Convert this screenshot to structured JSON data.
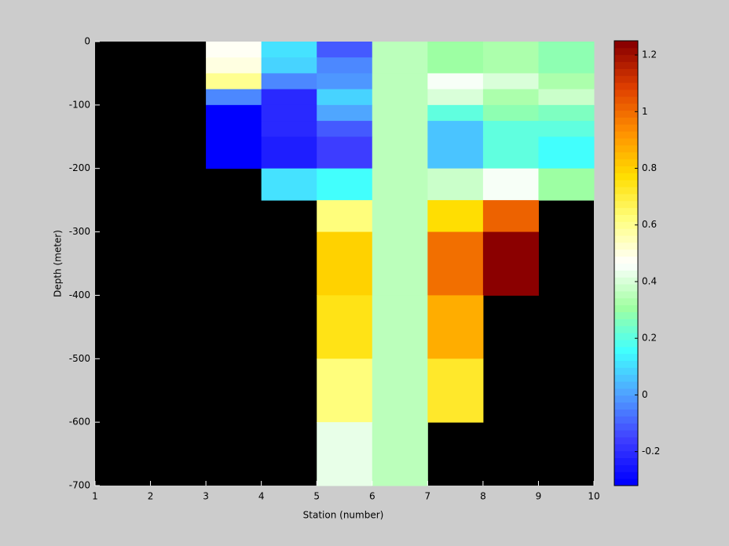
{
  "chart_data": {
    "type": "heatmap",
    "xlabel": "Station (number)",
    "ylabel": "Depth (meter)",
    "x": [
      1,
      2,
      3,
      4,
      5,
      6,
      7,
      8,
      9,
      10
    ],
    "y": [
      0,
      -25,
      -50,
      -75,
      -100,
      -125,
      -150,
      -200,
      -250,
      -300,
      -400,
      -500,
      -600,
      -700
    ],
    "z": [
      [
        null,
        null,
        0.47,
        0.1,
        -0.1,
        0.35,
        0.3,
        0.33,
        0.28
      ],
      [
        null,
        null,
        0.5,
        0.08,
        -0.05,
        0.35,
        0.3,
        0.33,
        0.28
      ],
      [
        null,
        null,
        0.6,
        -0.05,
        -0.02,
        0.35,
        0.45,
        0.4,
        0.33
      ],
      [
        null,
        null,
        -0.05,
        -0.2,
        0.08,
        0.35,
        0.4,
        0.32,
        0.38
      ],
      [
        null,
        null,
        -0.3,
        -0.22,
        0.0,
        0.35,
        0.2,
        0.28,
        0.25
      ],
      [
        null,
        null,
        -0.3,
        -0.22,
        -0.12,
        0.35,
        0.05,
        0.2,
        0.2
      ],
      [
        null,
        null,
        -0.3,
        -0.24,
        -0.15,
        0.35,
        0.05,
        0.2,
        0.15
      ],
      [
        null,
        null,
        null,
        0.1,
        0.15,
        0.35,
        0.38,
        0.45,
        0.3
      ],
      [
        null,
        null,
        null,
        null,
        0.62,
        0.35,
        0.78,
        1.02,
        null
      ],
      [
        null,
        null,
        null,
        null,
        0.8,
        0.35,
        1.0,
        1.25,
        null
      ],
      [
        null,
        null,
        null,
        null,
        0.75,
        0.35,
        0.88,
        null,
        null
      ],
      [
        null,
        null,
        null,
        null,
        0.62,
        0.35,
        0.72,
        null,
        null
      ],
      [
        null,
        null,
        null,
        null,
        0.42,
        0.35,
        null,
        null,
        null
      ]
    ],
    "xlim": [
      1,
      10
    ],
    "xticks": [
      1,
      2,
      3,
      4,
      5,
      6,
      7,
      8,
      9,
      10
    ],
    "ylim": [
      -700,
      0
    ],
    "yticks": [
      0,
      -100,
      -200,
      -300,
      -400,
      -500,
      -600,
      -700
    ],
    "clim": [
      -0.32,
      1.25
    ],
    "cticks": [
      -0.2,
      0,
      0.2,
      0.4,
      0.6,
      0.8,
      1,
      1.2
    ],
    "colormap": [
      "#0000ff",
      "#4040ff",
      "#50a0ff",
      "#40ffff",
      "#a0ffa0",
      "#ffffff",
      "#ffff80",
      "#ffdd00",
      "#ff9000",
      "#e04000",
      "#8b0000"
    ],
    "missing_color": "#000000"
  }
}
